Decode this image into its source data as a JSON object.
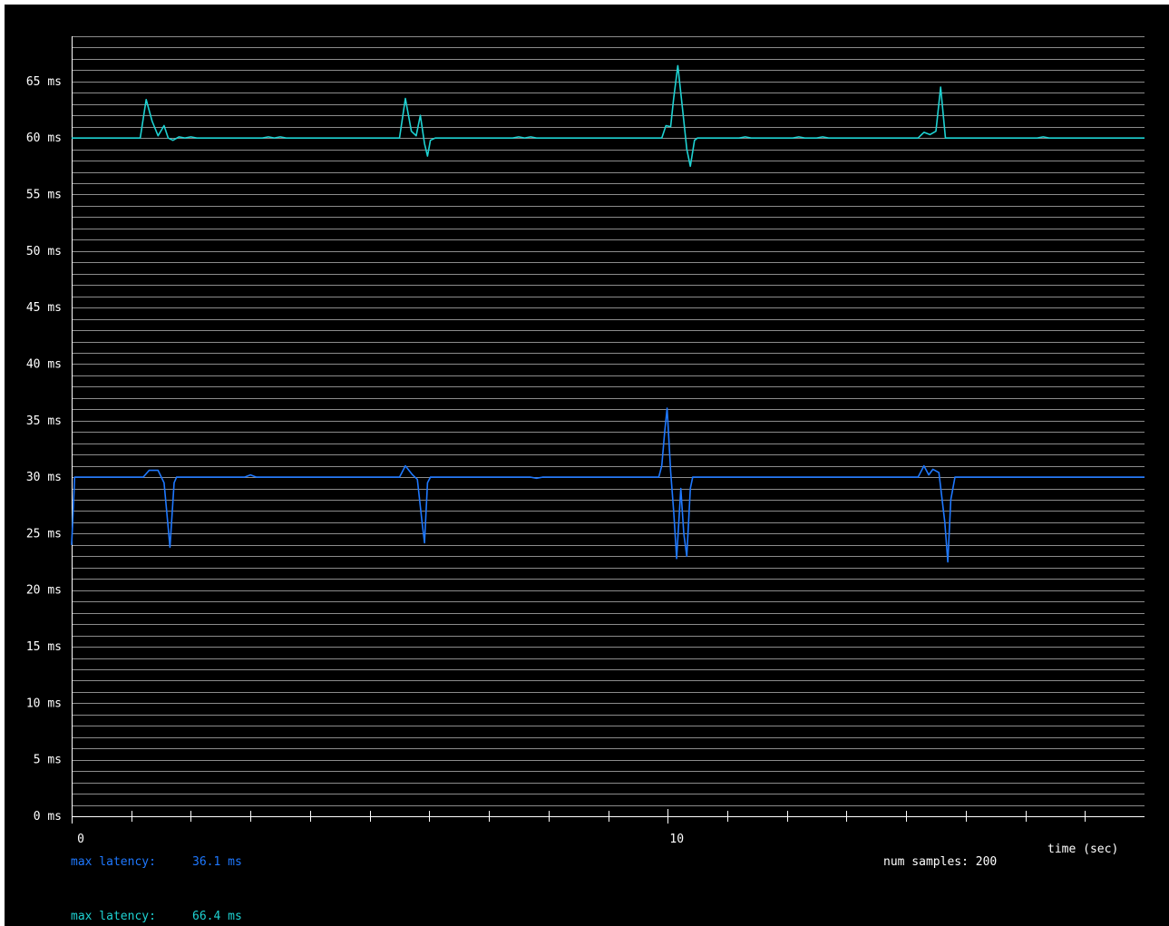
{
  "colors": {
    "background": "#000000",
    "grid": "#8c8c8c",
    "axis": "#ffffff",
    "text": "#ffffff",
    "series_blue": "#1e78ff",
    "series_cyan": "#1ed2d2"
  },
  "chart_data": {
    "type": "line",
    "xlabel": "time (sec)",
    "ylabel": "",
    "xlim": [
      0,
      18
    ],
    "ylim": [
      0,
      69
    ],
    "x_tick_labels": [
      {
        "x": 0,
        "label": "0"
      },
      {
        "x": 10,
        "label": "10"
      }
    ],
    "x_ticks_minor": [
      1,
      2,
      3,
      4,
      5,
      6,
      7,
      8,
      9,
      11,
      12,
      13,
      14,
      15,
      16,
      17
    ],
    "y_ticks": [
      {
        "y": 0,
        "label": "0 ms"
      },
      {
        "y": 5,
        "label": "5 ms"
      },
      {
        "y": 10,
        "label": "10 ms"
      },
      {
        "y": 15,
        "label": "15 ms"
      },
      {
        "y": 20,
        "label": "20 ms"
      },
      {
        "y": 25,
        "label": "25 ms"
      },
      {
        "y": 30,
        "label": "30 ms"
      },
      {
        "y": 35,
        "label": "35 ms"
      },
      {
        "y": 40,
        "label": "40 ms"
      },
      {
        "y": 45,
        "label": "45 ms"
      },
      {
        "y": 50,
        "label": "50 ms"
      },
      {
        "y": 55,
        "label": "55 ms"
      },
      {
        "y": 60,
        "label": "60 ms"
      },
      {
        "y": 65,
        "label": "65 ms"
      }
    ],
    "grid_step": 1,
    "grid": true,
    "series": [
      {
        "color": "#1e78ff",
        "points": [
          [
            0.0,
            24.0
          ],
          [
            0.05,
            30.0
          ],
          [
            1.2,
            30.0
          ],
          [
            1.3,
            30.6
          ],
          [
            1.45,
            30.6
          ],
          [
            1.55,
            29.5
          ],
          [
            1.62,
            25.5
          ],
          [
            1.65,
            23.8
          ],
          [
            1.72,
            29.5
          ],
          [
            1.76,
            30.0
          ],
          [
            2.9,
            30.0
          ],
          [
            3.0,
            30.2
          ],
          [
            3.1,
            30.0
          ],
          [
            5.5,
            30.0
          ],
          [
            5.6,
            31.0
          ],
          [
            5.72,
            30.2
          ],
          [
            5.8,
            29.8
          ],
          [
            5.88,
            26.0
          ],
          [
            5.92,
            24.2
          ],
          [
            5.97,
            29.5
          ],
          [
            6.02,
            30.0
          ],
          [
            7.7,
            30.0
          ],
          [
            7.8,
            29.9
          ],
          [
            7.9,
            30.0
          ],
          [
            9.85,
            30.0
          ],
          [
            9.9,
            31.0
          ],
          [
            9.95,
            34.0
          ],
          [
            9.99,
            36.1
          ],
          [
            10.05,
            30.5
          ],
          [
            10.1,
            27.0
          ],
          [
            10.15,
            22.8
          ],
          [
            10.22,
            29.0
          ],
          [
            10.27,
            25.0
          ],
          [
            10.32,
            23.0
          ],
          [
            10.38,
            29.0
          ],
          [
            10.42,
            30.0
          ],
          [
            14.2,
            30.0
          ],
          [
            14.3,
            31.0
          ],
          [
            14.38,
            30.2
          ],
          [
            14.45,
            30.7
          ],
          [
            14.55,
            30.4
          ],
          [
            14.65,
            26.0
          ],
          [
            14.7,
            22.5
          ],
          [
            14.75,
            28.0
          ],
          [
            14.82,
            30.0
          ],
          [
            18.0,
            30.0
          ]
        ]
      },
      {
        "color": "#1ed2d2",
        "points": [
          [
            0.0,
            60.0
          ],
          [
            1.15,
            60.0
          ],
          [
            1.25,
            63.4
          ],
          [
            1.35,
            61.5
          ],
          [
            1.45,
            60.2
          ],
          [
            1.55,
            61.1
          ],
          [
            1.62,
            60.0
          ],
          [
            1.7,
            59.8
          ],
          [
            1.8,
            60.1
          ],
          [
            1.9,
            60.0
          ],
          [
            2.0,
            60.1
          ],
          [
            2.1,
            60.0
          ],
          [
            3.2,
            60.0
          ],
          [
            3.3,
            60.1
          ],
          [
            3.4,
            60.0
          ],
          [
            3.5,
            60.1
          ],
          [
            3.6,
            60.0
          ],
          [
            5.5,
            60.0
          ],
          [
            5.6,
            63.5
          ],
          [
            5.7,
            60.6
          ],
          [
            5.78,
            60.2
          ],
          [
            5.85,
            62.0
          ],
          [
            5.92,
            59.5
          ],
          [
            5.97,
            58.4
          ],
          [
            6.02,
            59.8
          ],
          [
            6.1,
            60.0
          ],
          [
            7.4,
            60.0
          ],
          [
            7.5,
            60.1
          ],
          [
            7.6,
            60.0
          ],
          [
            7.7,
            60.1
          ],
          [
            7.8,
            60.0
          ],
          [
            9.9,
            60.0
          ],
          [
            9.97,
            61.1
          ],
          [
            10.05,
            61.0
          ],
          [
            10.1,
            63.5
          ],
          [
            10.17,
            66.4
          ],
          [
            10.25,
            62.5
          ],
          [
            10.32,
            59.0
          ],
          [
            10.38,
            57.5
          ],
          [
            10.45,
            59.8
          ],
          [
            10.5,
            60.0
          ],
          [
            11.2,
            60.0
          ],
          [
            11.3,
            60.1
          ],
          [
            11.4,
            60.0
          ],
          [
            12.1,
            60.0
          ],
          [
            12.2,
            60.1
          ],
          [
            12.3,
            60.0
          ],
          [
            12.5,
            60.0
          ],
          [
            12.6,
            60.1
          ],
          [
            12.7,
            60.0
          ],
          [
            14.2,
            60.0
          ],
          [
            14.3,
            60.5
          ],
          [
            14.4,
            60.3
          ],
          [
            14.5,
            60.6
          ],
          [
            14.58,
            64.5
          ],
          [
            14.66,
            60.0
          ],
          [
            16.2,
            60.0
          ],
          [
            16.3,
            60.1
          ],
          [
            16.4,
            60.0
          ],
          [
            18.0,
            60.0
          ]
        ]
      }
    ]
  },
  "footer": {
    "max_latency_label": "max latency:",
    "series_blue_max": "36.1 ms",
    "series_cyan_max": "66.4 ms",
    "num_samples_label": "num samples: 200",
    "xlabel": "time (sec)"
  }
}
